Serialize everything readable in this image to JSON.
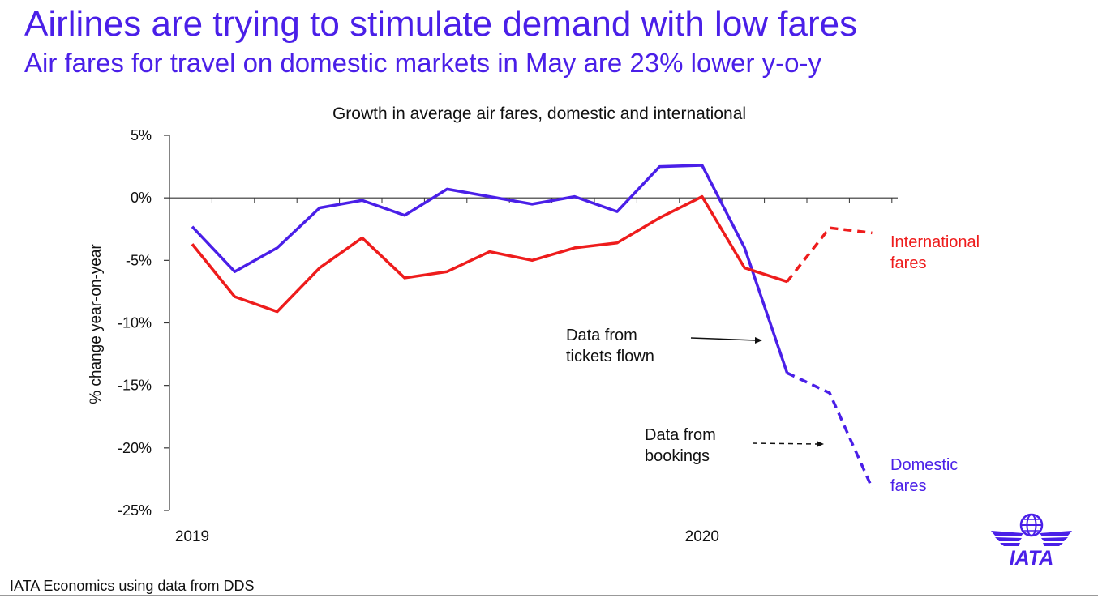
{
  "slide": {
    "title": "Airlines are trying to stimulate demand with low fares",
    "subtitle": "Air fares for travel on domestic markets in May are 23% lower y-o-y",
    "source": "IATA Economics using data from DDS",
    "logo_text": "IATA"
  },
  "colors": {
    "title": "#4a1fe8",
    "domestic": "#4a1fe8",
    "international": "#ee1c1c",
    "text": "#111111"
  },
  "chart_data": {
    "type": "line",
    "title": "Growth in average air fares, domestic and international",
    "ylabel": "% change year-on-year",
    "xlabel": "",
    "ylim": [
      -25,
      5
    ],
    "yticks": [
      5,
      0,
      -5,
      -10,
      -15,
      -20,
      -25
    ],
    "ytick_labels": [
      "5%",
      "0%",
      "-5%",
      "-10%",
      "-15%",
      "-20%",
      "-25%"
    ],
    "x_labels": [
      {
        "label": "2019",
        "index": 0
      },
      {
        "label": "2020",
        "index": 12
      }
    ],
    "x_count": 17,
    "series": [
      {
        "name": "Domestic fares",
        "label_lines": [
          "Domestic",
          "fares"
        ],
        "color": "#4a1fe8",
        "values": [
          -2.3,
          -5.9,
          -4.0,
          -0.8,
          -0.2,
          -1.4,
          0.7,
          0.1,
          -0.5,
          0.1,
          -1.1,
          2.5,
          2.6,
          -4.0,
          -14.0,
          -15.6,
          -23.2
        ],
        "solid_until": 14
      },
      {
        "name": "International fares",
        "label_lines": [
          "International",
          "fares"
        ],
        "color": "#ee1c1c",
        "values": [
          -3.7,
          -7.9,
          -9.1,
          -5.6,
          -3.2,
          -6.4,
          -5.9,
          -4.3,
          -5.0,
          -4.0,
          -3.6,
          -1.6,
          0.1,
          -5.6,
          -6.7,
          -2.4,
          -2.8
        ],
        "solid_until": 14
      }
    ],
    "annotations": [
      {
        "text_lines": [
          "Data from",
          "tickets flown"
        ],
        "style": "solid"
      },
      {
        "text_lines": [
          "Data from",
          "bookings"
        ],
        "style": "dashed"
      }
    ],
    "grid": false,
    "legend": "inline"
  }
}
